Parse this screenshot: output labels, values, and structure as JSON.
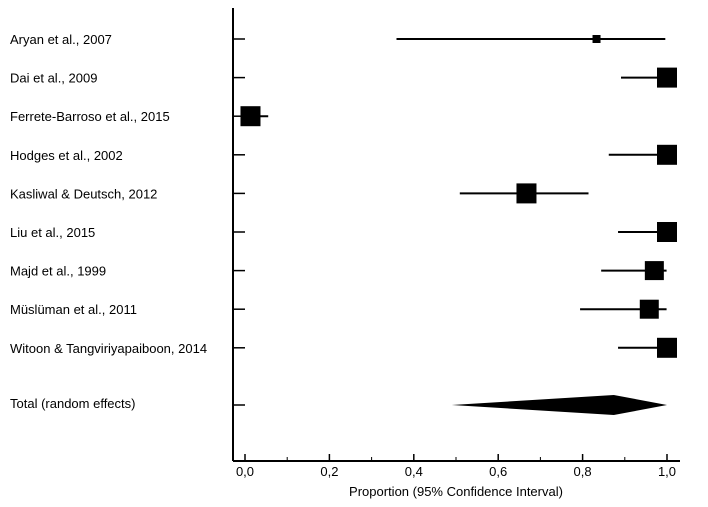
{
  "chart_data": {
    "type": "forest",
    "xlabel": "Proportion (95% Confidence Interval)",
    "xlim": [
      0,
      1.0
    ],
    "x_ticks": [
      0.0,
      0.2,
      0.4,
      0.6,
      0.8,
      1.0
    ],
    "x_tick_labels": [
      "0,0",
      "0,2",
      "0,4",
      "0,6",
      "0,8",
      "1,0"
    ],
    "studies": [
      {
        "label": "Aryan et al., 2007",
        "estimate": 0.833,
        "ci_low": 0.359,
        "ci_high": 0.996,
        "weight": 0.3
      },
      {
        "label": "Dai et al., 2009",
        "estimate": 1.0,
        "ci_low": 0.891,
        "ci_high": 1.0,
        "weight": 1.0
      },
      {
        "label": "Ferrete-Barroso et al., 2015",
        "estimate": 0.013,
        "ci_low": 0.0,
        "ci_high": 0.055,
        "weight": 1.0
      },
      {
        "label": "Hodges et al., 2002",
        "estimate": 1.0,
        "ci_low": 0.862,
        "ci_high": 1.0,
        "weight": 1.0
      },
      {
        "label": "Kasliwal & Deutsch, 2012",
        "estimate": 0.667,
        "ci_low": 0.509,
        "ci_high": 0.814,
        "weight": 1.0
      },
      {
        "label": "Liu et al., 2015",
        "estimate": 1.0,
        "ci_low": 0.884,
        "ci_high": 1.0,
        "weight": 1.0
      },
      {
        "label": "Majd et al., 1999",
        "estimate": 0.97,
        "ci_low": 0.844,
        "ci_high": 0.999,
        "weight": 0.95
      },
      {
        "label": "Müslüman et al., 2011",
        "estimate": 0.958,
        "ci_low": 0.794,
        "ci_high": 0.999,
        "weight": 0.95
      },
      {
        "label": "Witoon & Tangviriyapaiboon, 2014",
        "estimate": 1.0,
        "ci_low": 0.884,
        "ci_high": 1.0,
        "weight": 1.0
      }
    ],
    "total": {
      "label": "Total (random effects)",
      "estimate": 0.874,
      "ci_low": 0.49,
      "ci_high": 1.0
    }
  }
}
